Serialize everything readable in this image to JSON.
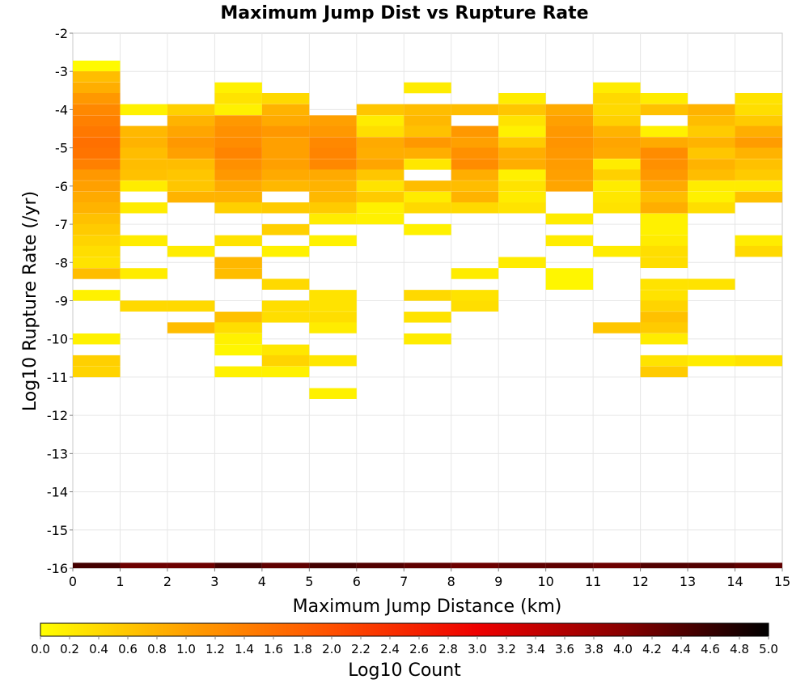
{
  "chart_data": {
    "type": "heatmap",
    "title": "Maximum Jump Dist vs Rupture Rate",
    "xlabel": "Maximum Jump Distance (km)",
    "ylabel": "Log10 Rupture Rate (/yr)",
    "xlim": [
      0,
      15
    ],
    "ylim": [
      -16,
      -2
    ],
    "x_ticks": [
      0,
      1,
      2,
      3,
      4,
      5,
      6,
      7,
      8,
      9,
      10,
      11,
      12,
      13,
      14,
      15
    ],
    "y_ticks": [
      -2,
      -3,
      -4,
      -5,
      -6,
      -7,
      -8,
      -9,
      -10,
      -11,
      -12,
      -13,
      -14,
      -15,
      -16
    ],
    "x_bin_width": 1,
    "y_bin_height": 0.2857,
    "grid": true,
    "colorbar": {
      "label": "Log10 Count",
      "range": [
        0,
        5
      ],
      "ticks": [
        "0.0",
        "0.2",
        "0.4",
        "0.6",
        "0.8",
        "1.0",
        "1.2",
        "1.4",
        "1.6",
        "1.8",
        "2.0",
        "2.2",
        "2.4",
        "2.6",
        "2.8",
        "3.0",
        "3.2",
        "3.4",
        "3.6",
        "3.8",
        "4.0",
        "4.2",
        "4.4",
        "4.6",
        "4.8",
        "5.0"
      ],
      "colors": [
        "#ffff00",
        "#ffa000",
        "#ff5000",
        "#ee0000",
        "#880000",
        "#000000"
      ]
    },
    "columns": [
      {
        "x": 0.5,
        "cells": [
          [
            -2.86,
            0.05
          ],
          [
            -3.14,
            0.7
          ],
          [
            -3.43,
            0.85
          ],
          [
            -3.71,
            1.1
          ],
          [
            -4.0,
            1.3
          ],
          [
            -4.29,
            1.4
          ],
          [
            -4.57,
            1.5
          ],
          [
            -4.86,
            1.6
          ],
          [
            -5.14,
            1.55
          ],
          [
            -5.43,
            1.4
          ],
          [
            -5.71,
            1.1
          ],
          [
            -6.0,
            1.0
          ],
          [
            -6.29,
            0.9
          ],
          [
            -6.57,
            0.8
          ],
          [
            -6.86,
            0.65
          ],
          [
            -7.14,
            0.55
          ],
          [
            -7.43,
            0.45
          ],
          [
            -7.71,
            0.35
          ],
          [
            -8.0,
            0.3
          ],
          [
            -8.29,
            0.7
          ],
          [
            -8.86,
            0.15
          ],
          [
            -10.0,
            0.15
          ],
          [
            -10.57,
            0.5
          ],
          [
            -10.86,
            0.45
          ],
          [
            -16.0,
            4.5
          ]
        ]
      },
      {
        "x": 1.5,
        "cells": [
          [
            -4.0,
            0.15
          ],
          [
            -4.57,
            0.75
          ],
          [
            -4.86,
            0.8
          ],
          [
            -5.14,
            0.7
          ],
          [
            -5.43,
            0.7
          ],
          [
            -5.71,
            0.65
          ],
          [
            -6.0,
            0.2
          ],
          [
            -6.57,
            0.2
          ],
          [
            -7.43,
            0.2
          ],
          [
            -8.29,
            0.2
          ],
          [
            -9.14,
            0.4
          ],
          [
            -16.0,
            4.2
          ]
        ]
      },
      {
        "x": 2.5,
        "cells": [
          [
            -4.0,
            0.5
          ],
          [
            -4.29,
            0.8
          ],
          [
            -4.57,
            0.95
          ],
          [
            -4.86,
            1.1
          ],
          [
            -5.14,
            1.0
          ],
          [
            -5.43,
            0.7
          ],
          [
            -5.71,
            0.6
          ],
          [
            -6.0,
            0.6
          ],
          [
            -6.29,
            0.8
          ],
          [
            -7.71,
            0.2
          ],
          [
            -9.14,
            0.4
          ],
          [
            -9.71,
            0.7
          ],
          [
            -16.0,
            4.2
          ]
        ]
      },
      {
        "x": 3.5,
        "cells": [
          [
            -3.43,
            0.15
          ],
          [
            -3.71,
            0.3
          ],
          [
            -4.0,
            0.15
          ],
          [
            -4.29,
            1.1
          ],
          [
            -4.57,
            1.2
          ],
          [
            -4.86,
            1.25
          ],
          [
            -5.14,
            1.35
          ],
          [
            -5.43,
            1.2
          ],
          [
            -5.71,
            1.1
          ],
          [
            -6.0,
            0.9
          ],
          [
            -6.29,
            0.8
          ],
          [
            -6.57,
            0.5
          ],
          [
            -7.43,
            0.3
          ],
          [
            -8.0,
            0.75
          ],
          [
            -8.29,
            0.7
          ],
          [
            -9.43,
            0.65
          ],
          [
            -9.71,
            0.35
          ],
          [
            -10.0,
            0.15
          ],
          [
            -10.29,
            0.1
          ],
          [
            -10.86,
            0.15
          ],
          [
            -16.0,
            4.5
          ]
        ]
      },
      {
        "x": 4.5,
        "cells": [
          [
            -3.71,
            0.4
          ],
          [
            -4.0,
            0.8
          ],
          [
            -4.29,
            0.9
          ],
          [
            -4.57,
            1.1
          ],
          [
            -4.86,
            1.0
          ],
          [
            -5.14,
            1.0
          ],
          [
            -5.43,
            1.0
          ],
          [
            -5.71,
            0.9
          ],
          [
            -6.0,
            0.75
          ],
          [
            -6.57,
            0.55
          ],
          [
            -7.14,
            0.5
          ],
          [
            -7.71,
            0.15
          ],
          [
            -8.57,
            0.4
          ],
          [
            -9.14,
            0.35
          ],
          [
            -9.43,
            0.35
          ],
          [
            -10.29,
            0.25
          ],
          [
            -10.57,
            0.45
          ],
          [
            -10.86,
            0.15
          ],
          [
            -16.0,
            4.3
          ]
        ]
      },
      {
        "x": 5.5,
        "cells": [
          [
            -4.29,
            1.0
          ],
          [
            -4.57,
            1.1
          ],
          [
            -4.86,
            1.3
          ],
          [
            -5.14,
            1.35
          ],
          [
            -5.43,
            1.3
          ],
          [
            -5.71,
            0.9
          ],
          [
            -6.0,
            0.8
          ],
          [
            -6.29,
            0.75
          ],
          [
            -6.57,
            0.55
          ],
          [
            -6.86,
            0.2
          ],
          [
            -7.43,
            0.15
          ],
          [
            -8.86,
            0.3
          ],
          [
            -9.14,
            0.3
          ],
          [
            -9.43,
            0.35
          ],
          [
            -9.71,
            0.2
          ],
          [
            -10.57,
            0.25
          ],
          [
            -11.43,
            0.15
          ],
          [
            -16.0,
            4.5
          ]
        ]
      },
      {
        "x": 6.5,
        "cells": [
          [
            -4.0,
            0.6
          ],
          [
            -4.29,
            0.2
          ],
          [
            -4.57,
            0.35
          ],
          [
            -4.86,
            0.9
          ],
          [
            -5.14,
            0.85
          ],
          [
            -5.43,
            0.95
          ],
          [
            -5.71,
            0.6
          ],
          [
            -6.0,
            0.3
          ],
          [
            -6.29,
            0.55
          ],
          [
            -6.57,
            0.15
          ],
          [
            -6.86,
            0.15
          ],
          [
            -16.0,
            4.4
          ]
        ]
      },
      {
        "x": 7.5,
        "cells": [
          [
            -3.43,
            0.2
          ],
          [
            -4.0,
            0.7
          ],
          [
            -4.29,
            0.75
          ],
          [
            -4.57,
            0.65
          ],
          [
            -4.86,
            1.1
          ],
          [
            -5.14,
            0.85
          ],
          [
            -5.43,
            0.25
          ],
          [
            -6.0,
            0.7
          ],
          [
            -6.29,
            0.2
          ],
          [
            -6.57,
            0.4
          ],
          [
            -7.14,
            0.15
          ],
          [
            -8.86,
            0.4
          ],
          [
            -9.43,
            0.3
          ],
          [
            -10.0,
            0.2
          ],
          [
            -16.0,
            4.3
          ]
        ]
      },
      {
        "x": 8.5,
        "cells": [
          [
            -4.0,
            0.7
          ],
          [
            -4.57,
            1.1
          ],
          [
            -4.86,
            1.0
          ],
          [
            -5.14,
            1.2
          ],
          [
            -5.43,
            1.25
          ],
          [
            -5.71,
            0.85
          ],
          [
            -6.0,
            0.7
          ],
          [
            -6.29,
            0.8
          ],
          [
            -6.57,
            0.4
          ],
          [
            -8.29,
            0.2
          ],
          [
            -8.86,
            0.3
          ],
          [
            -9.14,
            0.35
          ],
          [
            -16.0,
            4.2
          ]
        ]
      },
      {
        "x": 9.5,
        "cells": [
          [
            -3.71,
            0.2
          ],
          [
            -4.0,
            0.6
          ],
          [
            -4.29,
            0.3
          ],
          [
            -4.57,
            0.15
          ],
          [
            -4.86,
            0.55
          ],
          [
            -5.14,
            0.85
          ],
          [
            -5.43,
            0.85
          ],
          [
            -5.71,
            0.15
          ],
          [
            -6.0,
            0.3
          ],
          [
            -6.29,
            0.2
          ],
          [
            -6.57,
            0.3
          ],
          [
            -8.0,
            0.2
          ],
          [
            -16.0,
            4.3
          ]
        ]
      },
      {
        "x": 10.5,
        "cells": [
          [
            -4.0,
            0.9
          ],
          [
            -4.29,
            1.0
          ],
          [
            -4.57,
            1.1
          ],
          [
            -4.86,
            1.15
          ],
          [
            -5.14,
            1.1
          ],
          [
            -5.43,
            1.05
          ],
          [
            -5.71,
            1.0
          ],
          [
            -6.0,
            0.95
          ],
          [
            -6.86,
            0.2
          ],
          [
            -7.43,
            0.2
          ],
          [
            -8.29,
            0.1
          ],
          [
            -8.57,
            0.1
          ],
          [
            -16.0,
            4.3
          ]
        ]
      },
      {
        "x": 11.5,
        "cells": [
          [
            -3.43,
            0.2
          ],
          [
            -3.71,
            0.4
          ],
          [
            -4.0,
            0.4
          ],
          [
            -4.29,
            0.5
          ],
          [
            -4.57,
            0.8
          ],
          [
            -4.86,
            0.95
          ],
          [
            -5.14,
            0.9
          ],
          [
            -5.43,
            0.2
          ],
          [
            -5.71,
            0.5
          ],
          [
            -6.0,
            0.2
          ],
          [
            -6.29,
            0.25
          ],
          [
            -6.57,
            0.3
          ],
          [
            -7.71,
            0.2
          ],
          [
            -9.71,
            0.6
          ],
          [
            -16.0,
            4.2
          ]
        ]
      },
      {
        "x": 12.5,
        "cells": [
          [
            -3.71,
            0.2
          ],
          [
            -4.0,
            0.65
          ],
          [
            -4.57,
            0.15
          ],
          [
            -4.86,
            0.9
          ],
          [
            -5.14,
            1.25
          ],
          [
            -5.43,
            1.2
          ],
          [
            -5.71,
            1.1
          ],
          [
            -6.0,
            0.9
          ],
          [
            -6.29,
            0.7
          ],
          [
            -6.57,
            0.85
          ],
          [
            -6.86,
            0.15
          ],
          [
            -7.14,
            0.15
          ],
          [
            -7.43,
            0.2
          ],
          [
            -7.71,
            0.35
          ],
          [
            -8.0,
            0.35
          ],
          [
            -8.57,
            0.3
          ],
          [
            -8.86,
            0.3
          ],
          [
            -9.14,
            0.45
          ],
          [
            -9.43,
            0.65
          ],
          [
            -9.71,
            0.55
          ],
          [
            -10.0,
            0.2
          ],
          [
            -10.57,
            0.3
          ],
          [
            -10.86,
            0.55
          ],
          [
            -16.0,
            4.4
          ]
        ]
      },
      {
        "x": 13.5,
        "cells": [
          [
            -4.0,
            0.8
          ],
          [
            -4.29,
            0.7
          ],
          [
            -4.57,
            0.55
          ],
          [
            -4.86,
            0.8
          ],
          [
            -5.14,
            0.6
          ],
          [
            -5.43,
            0.8
          ],
          [
            -5.71,
            0.7
          ],
          [
            -6.0,
            0.2
          ],
          [
            -6.29,
            0.15
          ],
          [
            -6.57,
            0.35
          ],
          [
            -8.57,
            0.3
          ],
          [
            -10.57,
            0.2
          ],
          [
            -16.0,
            4.4
          ]
        ]
      },
      {
        "x": 14.5,
        "cells": [
          [
            -3.71,
            0.3
          ],
          [
            -4.0,
            0.35
          ],
          [
            -4.29,
            0.55
          ],
          [
            -4.57,
            0.85
          ],
          [
            -4.86,
            1.05
          ],
          [
            -5.14,
            0.8
          ],
          [
            -5.43,
            0.65
          ],
          [
            -5.71,
            0.55
          ],
          [
            -6.0,
            0.2
          ],
          [
            -6.29,
            0.65
          ],
          [
            -7.43,
            0.2
          ],
          [
            -7.71,
            0.4
          ],
          [
            -10.57,
            0.3
          ],
          [
            -16.0,
            4.3
          ]
        ]
      }
    ]
  }
}
